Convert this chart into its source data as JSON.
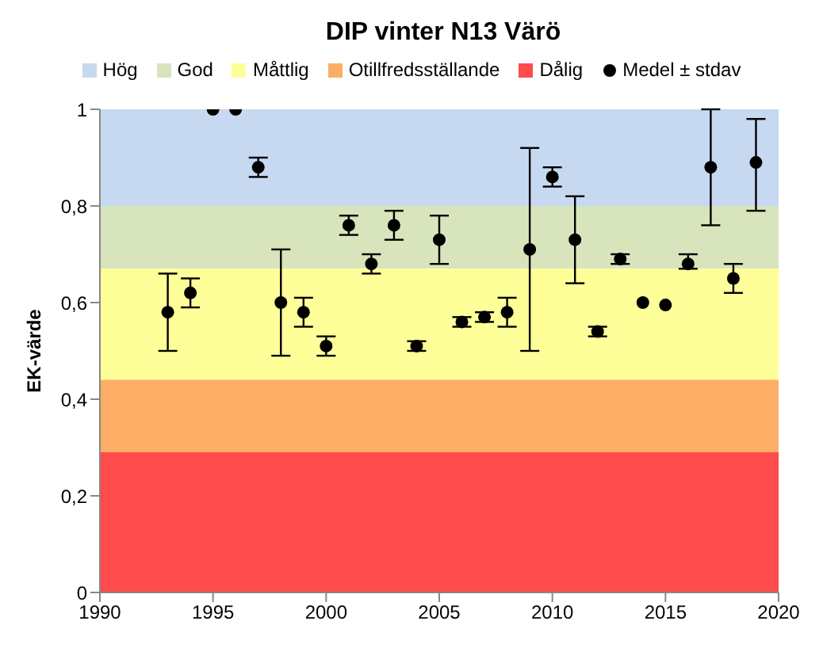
{
  "chart_data": {
    "type": "scatter",
    "title": "DIP vinter N13 Värö",
    "ylabel": "EK-värde",
    "x": [
      1993,
      1994,
      1995,
      1996,
      1997,
      1998,
      1999,
      2000,
      2001,
      2002,
      2003,
      2004,
      2005,
      2006,
      2007,
      2008,
      2009,
      2010,
      2011,
      2012,
      2013,
      2014,
      2015,
      2016,
      2017,
      2018,
      2019
    ],
    "series": [
      {
        "name": "Medel ± stdav",
        "color": "#000000",
        "values": [
          0.58,
          0.62,
          1.0,
          1.0,
          0.88,
          0.6,
          0.58,
          0.51,
          0.76,
          0.68,
          0.76,
          0.51,
          0.73,
          0.56,
          0.57,
          0.58,
          0.71,
          0.86,
          0.73,
          0.54,
          0.69,
          0.6,
          0.595,
          0.68,
          0.88,
          0.65,
          0.89
        ],
        "errors": [
          [
            0.5,
            0.66
          ],
          [
            0.59,
            0.65
          ],
          null,
          null,
          [
            0.86,
            0.9
          ],
          [
            0.49,
            0.71
          ],
          [
            0.55,
            0.61
          ],
          [
            0.49,
            0.53
          ],
          [
            0.74,
            0.78
          ],
          [
            0.66,
            0.7
          ],
          [
            0.73,
            0.79
          ],
          [
            0.5,
            0.52
          ],
          [
            0.68,
            0.78
          ],
          [
            0.55,
            0.57
          ],
          [
            0.56,
            0.58
          ],
          [
            0.55,
            0.61
          ],
          [
            0.5,
            0.92
          ],
          [
            0.84,
            0.88
          ],
          [
            0.64,
            0.82
          ],
          [
            0.53,
            0.55
          ],
          [
            0.68,
            0.7
          ],
          null,
          null,
          [
            0.67,
            0.7
          ],
          [
            0.76,
            1.0
          ],
          [
            0.62,
            0.68
          ],
          [
            0.79,
            0.98
          ]
        ]
      }
    ],
    "bands": [
      {
        "axis": "y",
        "from": 0.8,
        "to": 1,
        "label": "Hög",
        "color": "#c6d9f0"
      },
      {
        "axis": "y",
        "from": 0.67,
        "to": 0.8,
        "label": "God",
        "color": "#d8e4bc"
      },
      {
        "axis": "y",
        "from": 0.44,
        "to": 0.67,
        "label": "Måttlig",
        "color": "#ffff99"
      },
      {
        "axis": "y",
        "from": 0.29,
        "to": 0.44,
        "label": "Otillfredsställande",
        "color": "#fcae66"
      },
      {
        "axis": "y",
        "from": 0,
        "to": 0.29,
        "label": "Dålig",
        "color": "#ff4b4b"
      }
    ],
    "xlim": [
      1990,
      2020
    ],
    "xticks": [
      1990,
      1995,
      2000,
      2005,
      2010,
      2015,
      2020
    ],
    "ylim": [
      0,
      1
    ],
    "yticks": [
      0,
      {
        "value": 0.2,
        "label": "0,2"
      },
      {
        "value": 0.4,
        "label": "0,4"
      },
      {
        "value": 0.6,
        "label": "0,6"
      },
      {
        "value": 0.8,
        "label": "0,8"
      },
      1
    ],
    "marker": "circle",
    "legend": "top",
    "grid": false
  }
}
